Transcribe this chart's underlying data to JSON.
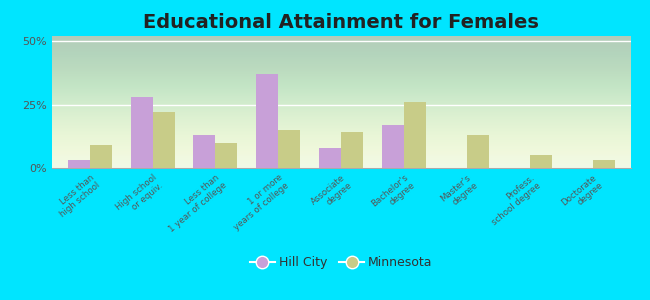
{
  "title": "Educational Attainment for Females",
  "categories": [
    "Less than\nhigh school",
    "High school\nor equiv.",
    "Less than\n1 year of college",
    "1 or more\nyears of college",
    "Associate\ndegree",
    "Bachelor's\ndegree",
    "Master's\ndegree",
    "Profess.\nschool degree",
    "Doctorate\ndegree"
  ],
  "hill_city": [
    3,
    28,
    13,
    37,
    8,
    17,
    0,
    0,
    0
  ],
  "minnesota": [
    9,
    22,
    10,
    15,
    14,
    26,
    13,
    5,
    3
  ],
  "hill_city_color": "#c8a0d8",
  "minnesota_color": "#c8cc88",
  "yticks": [
    0,
    25,
    50
  ],
  "ylim": [
    0,
    52
  ],
  "bar_width": 0.35,
  "title_fontsize": 14,
  "legend_labels": [
    "Hill City",
    "Minnesota"
  ],
  "figure_bg": "#00e5ff",
  "plot_bg": "#eef8e8"
}
